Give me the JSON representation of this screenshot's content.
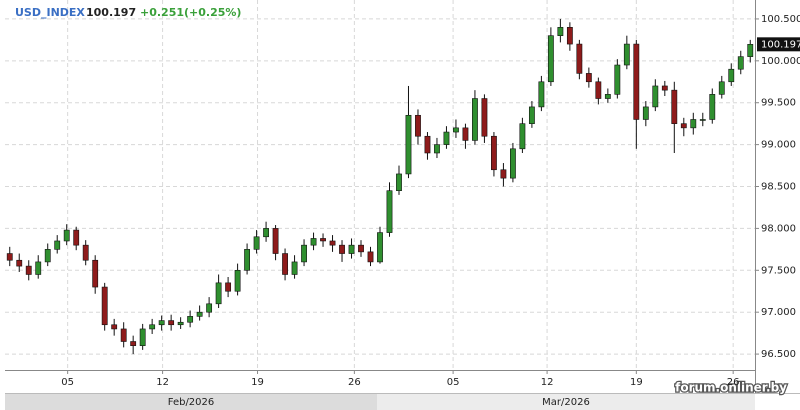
{
  "chart_data": {
    "type": "candlestick",
    "symbol": "USD_INDEX",
    "last_price": "100.197",
    "change": "+0.251(+0.25%)",
    "watermark": "forum.onliner.by",
    "months": [
      "Feb/2026",
      "Mar/2026"
    ],
    "up_color": "#2f8f2f",
    "down_color": "#8e1b1b",
    "grid": true,
    "xlim": [
      0,
      79
    ],
    "ylim": [
      96.31,
      100.726
    ],
    "xticks": [
      {
        "value": 6.6,
        "label": "05"
      },
      {
        "value": 16.6,
        "label": "12"
      },
      {
        "value": 26.6,
        "label": "19"
      },
      {
        "value": 36.8,
        "label": "26"
      },
      {
        "value": 47.2,
        "label": "05"
      },
      {
        "value": 57.1,
        "label": "12"
      },
      {
        "value": 66.5,
        "label": "19"
      },
      {
        "value": 76.7,
        "label": "26"
      }
    ],
    "yticks": [
      {
        "value": 96.5,
        "label": "96.500"
      },
      {
        "value": 97,
        "label": "97.000"
      },
      {
        "value": 97.5,
        "label": "97.500"
      },
      {
        "value": 98,
        "label": "98.000"
      },
      {
        "value": 98.5,
        "label": "98.500"
      },
      {
        "value": 99,
        "label": "99.000"
      },
      {
        "value": 99.5,
        "label": "99.500"
      },
      {
        "value": 100,
        "label": "100.000"
      },
      {
        "value": 100.5,
        "label": "100.500"
      }
    ],
    "x": [
      0.5,
      1.5,
      2.5,
      3.5,
      4.5,
      5.5,
      6.5,
      7.5,
      8.5,
      9.5,
      10.5,
      11.5,
      12.5,
      13.5,
      14.5,
      15.5,
      16.5,
      17.5,
      18.5,
      19.5,
      20.5,
      21.5,
      22.5,
      23.5,
      24.5,
      25.5,
      26.5,
      27.5,
      28.5,
      29.5,
      30.5,
      31.5,
      32.5,
      33.5,
      34.5,
      35.5,
      36.5,
      37.5,
      38.5,
      39.5,
      40.5,
      41.5,
      42.5,
      43.5,
      44.5,
      45.5,
      46.5,
      47.5,
      48.5,
      49.5,
      50.5,
      51.5,
      52.5,
      53.5,
      54.5,
      55.5,
      56.5,
      57.5,
      58.5,
      59.5,
      60.5,
      61.5,
      62.5,
      63.5,
      64.5,
      65.5,
      66.5,
      67.5,
      68.5,
      69.5,
      70.5,
      71.5,
      72.5,
      73.5,
      74.5,
      75.5,
      76.5,
      77.5,
      78.5
    ],
    "open": [
      97.7,
      97.62,
      97.55,
      97.45,
      97.6,
      97.75,
      97.85,
      97.98,
      97.8,
      97.62,
      97.3,
      96.85,
      96.8,
      96.65,
      96.6,
      96.8,
      96.85,
      96.9,
      96.85,
      96.88,
      96.95,
      97.0,
      97.1,
      97.35,
      97.25,
      97.5,
      97.75,
      97.9,
      98.0,
      97.7,
      97.45,
      97.6,
      97.8,
      97.88,
      97.85,
      97.8,
      97.7,
      97.8,
      97.72,
      97.6,
      97.95,
      98.45,
      98.65,
      99.35,
      99.1,
      98.9,
      99.0,
      99.15,
      99.2,
      99.05,
      99.55,
      99.1,
      98.7,
      98.6,
      98.95,
      99.25,
      99.45,
      99.75,
      100.3,
      100.4,
      100.2,
      99.85,
      99.75,
      99.55,
      99.6,
      99.95,
      100.2,
      99.3,
      99.45,
      99.7,
      99.65,
      99.25,
      99.2,
      99.3,
      99.3,
      99.6,
      99.75,
      99.9,
      100.05
    ],
    "high": [
      97.78,
      97.7,
      97.62,
      97.68,
      97.82,
      97.92,
      98.05,
      98.02,
      97.86,
      97.68,
      97.35,
      96.92,
      96.88,
      96.72,
      96.86,
      96.92,
      96.96,
      96.97,
      96.94,
      97.02,
      97.08,
      97.18,
      97.45,
      97.42,
      97.58,
      97.82,
      97.98,
      98.08,
      98.04,
      97.76,
      97.68,
      97.87,
      97.95,
      97.94,
      97.92,
      97.86,
      97.88,
      97.86,
      97.78,
      98.02,
      98.55,
      98.75,
      99.7,
      99.42,
      99.15,
      99.08,
      99.22,
      99.3,
      99.25,
      99.65,
      99.6,
      99.15,
      98.78,
      99.02,
      99.32,
      99.52,
      99.82,
      100.4,
      100.5,
      100.46,
      100.25,
      99.92,
      99.8,
      99.67,
      100.02,
      100.3,
      100.25,
      99.52,
      99.78,
      99.76,
      99.75,
      99.32,
      99.38,
      99.38,
      99.67,
      99.82,
      99.97,
      100.12,
      100.25
    ],
    "low": [
      97.55,
      97.48,
      97.38,
      97.4,
      97.55,
      97.7,
      97.8,
      97.74,
      97.56,
      97.22,
      96.78,
      96.72,
      96.58,
      96.5,
      96.55,
      96.74,
      96.78,
      96.78,
      96.8,
      96.82,
      96.9,
      96.94,
      97.05,
      97.18,
      97.2,
      97.45,
      97.7,
      97.84,
      97.62,
      97.38,
      97.4,
      97.55,
      97.74,
      97.78,
      97.72,
      97.6,
      97.64,
      97.66,
      97.55,
      97.58,
      97.9,
      98.4,
      98.6,
      99.0,
      98.82,
      98.84,
      98.95,
      99.08,
      98.95,
      99.0,
      99.02,
      98.62,
      98.5,
      98.55,
      98.9,
      99.2,
      99.4,
      99.7,
      100.22,
      100.12,
      99.78,
      99.68,
      99.48,
      99.5,
      99.55,
      99.9,
      98.95,
      99.22,
      99.4,
      99.58,
      98.9,
      99.1,
      99.12,
      99.22,
      99.25,
      99.55,
      99.7,
      99.84,
      99.98
    ],
    "close": [
      97.62,
      97.55,
      97.45,
      97.6,
      97.75,
      97.85,
      97.98,
      97.8,
      97.62,
      97.3,
      96.85,
      96.8,
      96.65,
      96.6,
      96.8,
      96.85,
      96.9,
      96.85,
      96.88,
      96.95,
      97.0,
      97.1,
      97.35,
      97.25,
      97.5,
      97.75,
      97.9,
      98.0,
      97.7,
      97.45,
      97.6,
      97.8,
      97.88,
      97.85,
      97.8,
      97.7,
      97.8,
      97.72,
      97.6,
      97.95,
      98.45,
      98.65,
      99.35,
      99.1,
      98.9,
      99.0,
      99.15,
      99.2,
      99.05,
      99.55,
      99.1,
      98.7,
      98.6,
      98.95,
      99.25,
      99.45,
      99.75,
      100.3,
      100.4,
      100.2,
      99.85,
      99.75,
      99.55,
      99.6,
      99.95,
      100.2,
      99.3,
      99.45,
      99.7,
      99.65,
      99.25,
      99.2,
      99.3,
      99.3,
      99.6,
      99.75,
      99.9,
      100.05,
      100.197
    ]
  }
}
